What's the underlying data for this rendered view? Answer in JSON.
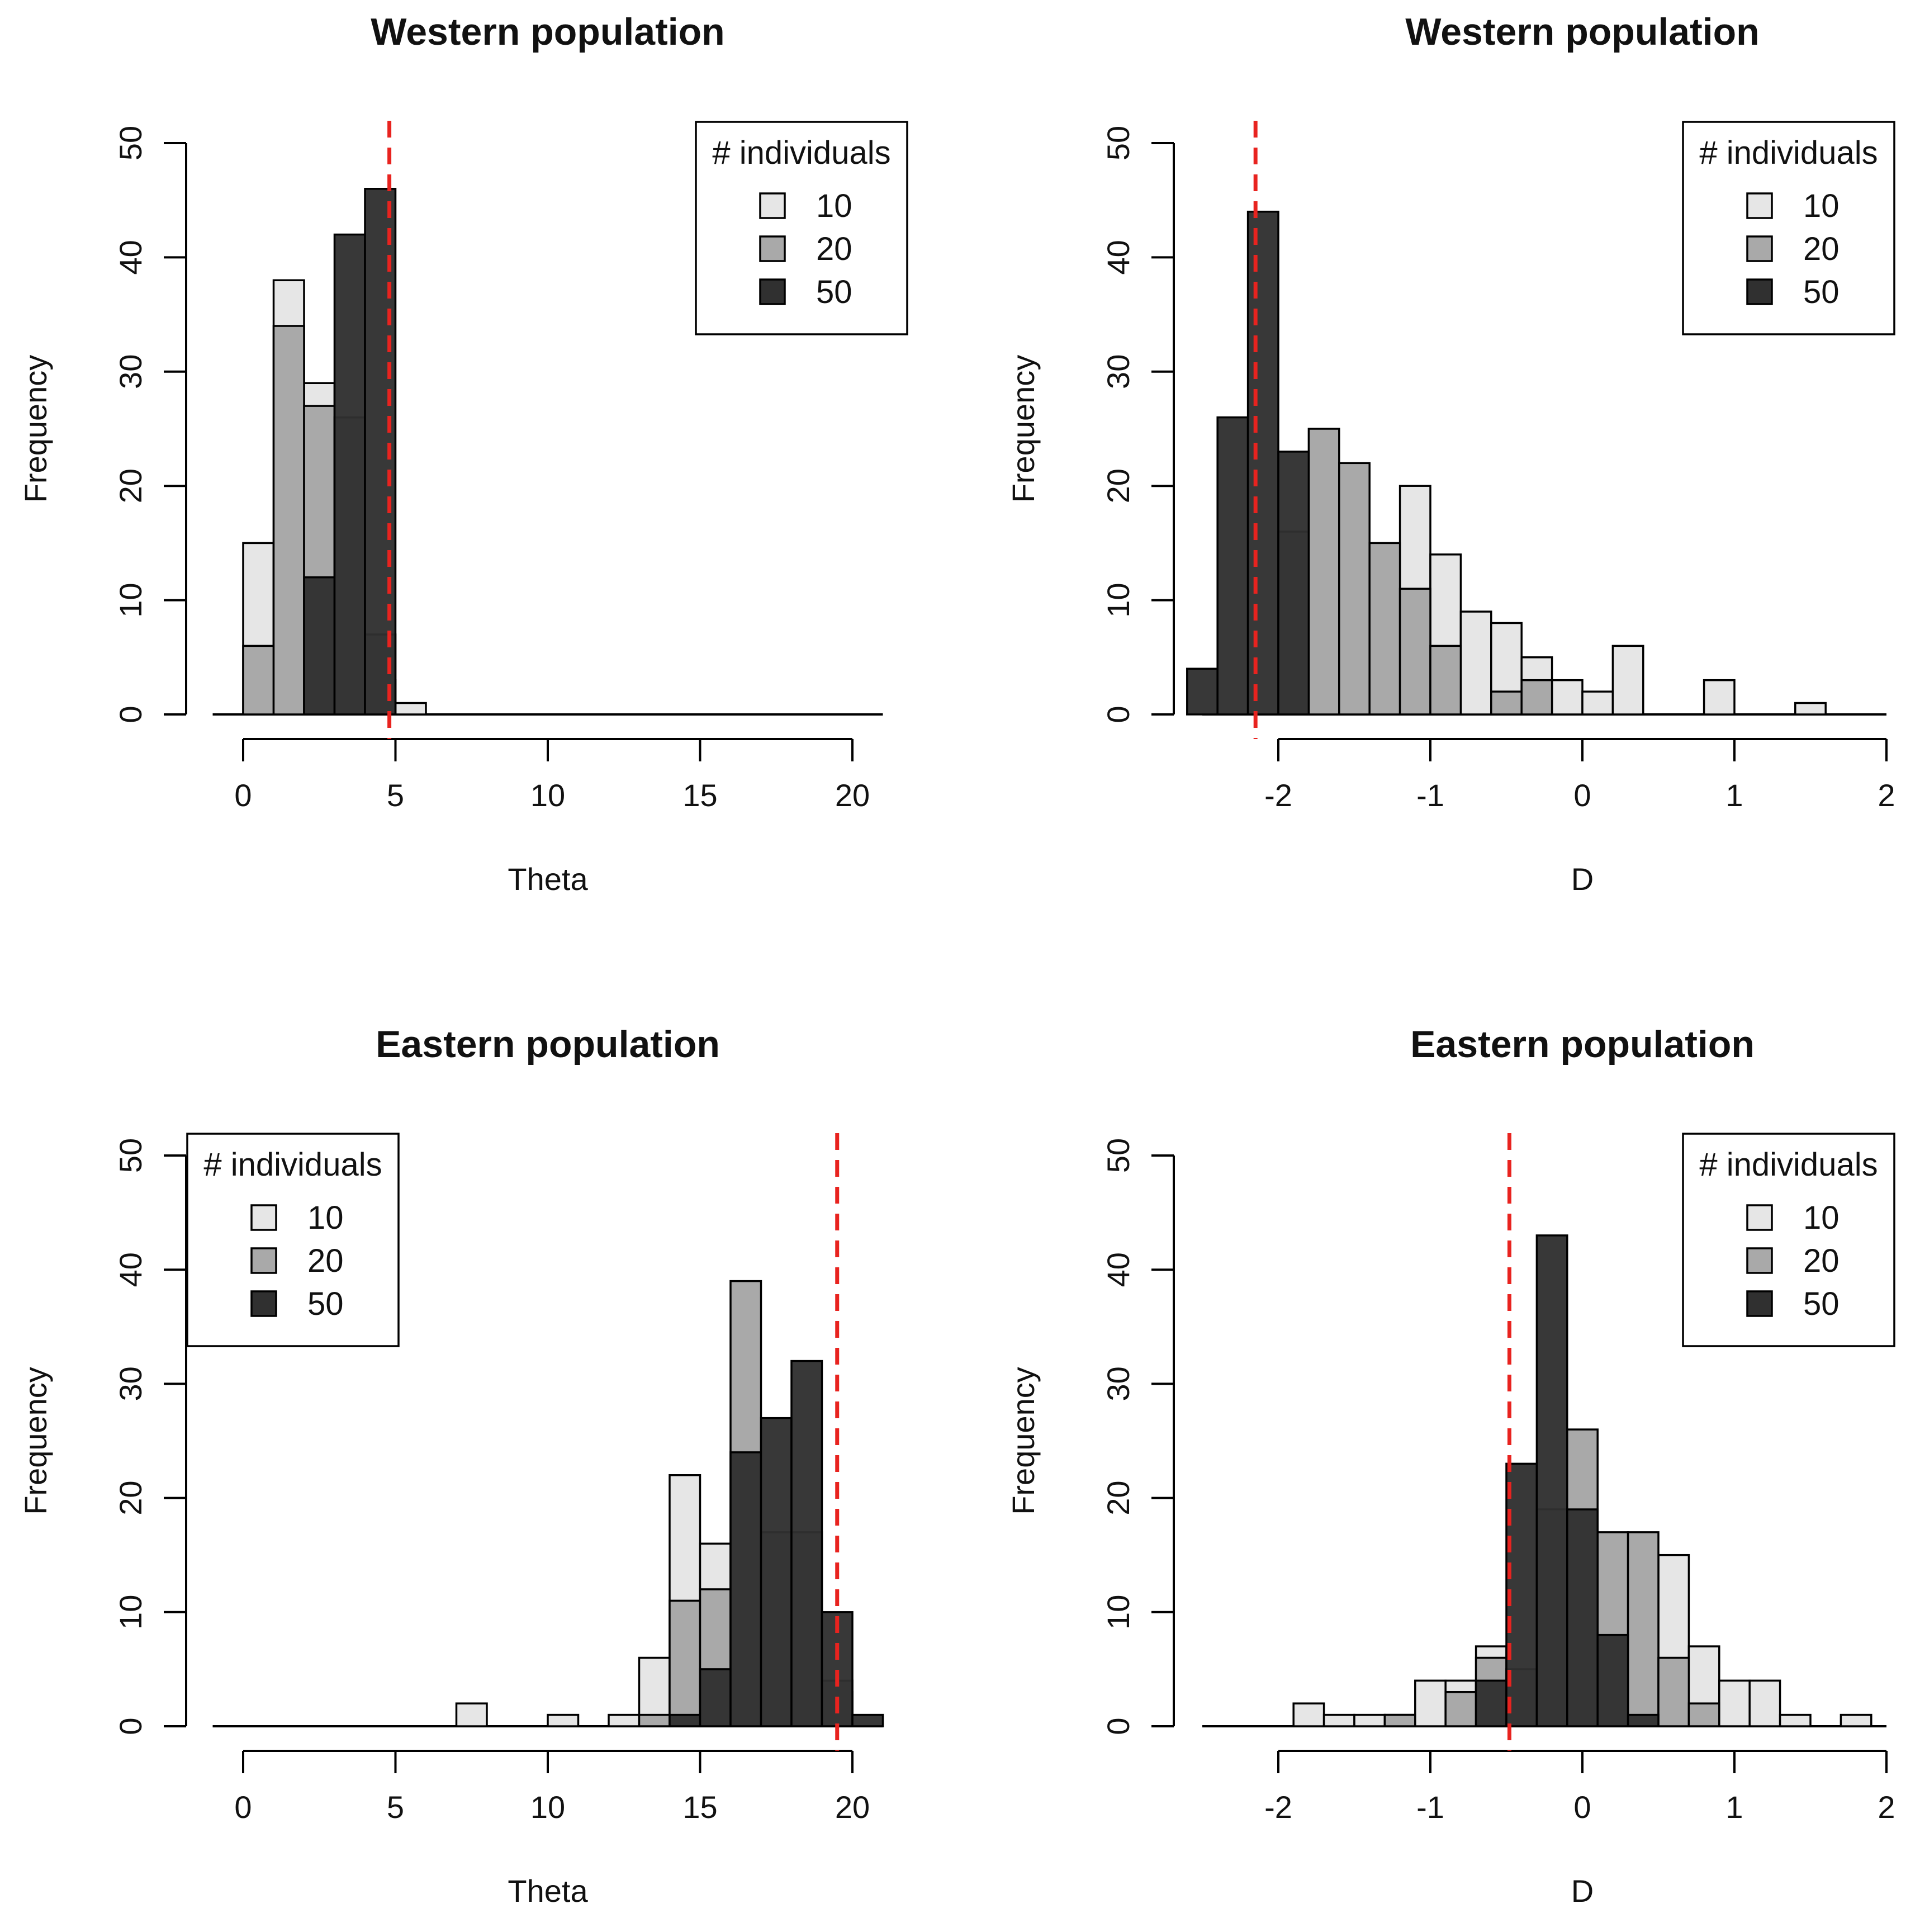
{
  "colors": {
    "n10": "#e6e6e6",
    "n20": "#a9a9a9",
    "n50": "#303030",
    "overlap": "#161616",
    "reference_line": "#e8231f",
    "outline": "#000000"
  },
  "chart_data": [
    {
      "type": "bar",
      "title": "Western population",
      "xlabel": "Theta",
      "ylabel": "Frequency",
      "xlim": [
        -1,
        21
      ],
      "ylim": [
        0,
        50
      ],
      "x_ticks": [
        0,
        5,
        10,
        15,
        20
      ],
      "x_tick_labels": [
        "0",
        "5",
        "10",
        "15",
        "20"
      ],
      "y_ticks": [
        0,
        10,
        20,
        30,
        40,
        50
      ],
      "y_tick_labels": [
        "0",
        "10",
        "20",
        "30",
        "40",
        "50"
      ],
      "bin_width": 1,
      "reference_line_x": 4.8,
      "legend": {
        "title": "# individuals",
        "position": "top-right",
        "entries": [
          "10",
          "20",
          "50"
        ]
      },
      "series": [
        {
          "name": "10",
          "bins": [
            [
              0,
              15
            ],
            [
              1,
              38
            ],
            [
              2,
              29
            ],
            [
              3,
              14
            ],
            [
              4,
              3
            ],
            [
              5,
              1
            ]
          ]
        },
        {
          "name": "20",
          "bins": [
            [
              0,
              6
            ],
            [
              1,
              34
            ],
            [
              2,
              27
            ],
            [
              3,
              26
            ],
            [
              4,
              7
            ]
          ]
        },
        {
          "name": "50",
          "bins": [
            [
              2,
              12
            ],
            [
              3,
              42
            ],
            [
              4,
              46
            ]
          ]
        }
      ]
    },
    {
      "type": "bar",
      "title": "Western population",
      "xlabel": "D",
      "ylabel": "Frequency",
      "xlim": [
        -2.5,
        2
      ],
      "ylim": [
        0,
        50
      ],
      "x_ticks": [
        -2,
        -1,
        0,
        1,
        2
      ],
      "x_tick_labels": [
        "-2",
        "-1",
        "0",
        "1",
        "2"
      ],
      "y_ticks": [
        0,
        10,
        20,
        30,
        40,
        50
      ],
      "y_tick_labels": [
        "0",
        "10",
        "20",
        "30",
        "40",
        "50"
      ],
      "bin_width": 0.2,
      "reference_line_x": -2.15,
      "legend": {
        "title": "# individuals",
        "position": "top-right",
        "entries": [
          "10",
          "20",
          "50"
        ]
      },
      "series": [
        {
          "name": "10",
          "bins": [
            [
              -2.0,
              1
            ],
            [
              -1.8,
              3
            ],
            [
              -1.6,
              3
            ],
            [
              -1.4,
              13
            ],
            [
              -1.2,
              20
            ],
            [
              -1.0,
              14
            ],
            [
              -0.8,
              9
            ],
            [
              -0.6,
              8
            ],
            [
              -0.4,
              5
            ],
            [
              -0.2,
              3
            ],
            [
              0.0,
              2
            ],
            [
              0.2,
              6
            ],
            [
              0.8,
              3
            ],
            [
              1.4,
              1
            ]
          ]
        },
        {
          "name": "20",
          "bins": [
            [
              -2.0,
              16
            ],
            [
              -1.8,
              25
            ],
            [
              -1.6,
              22
            ],
            [
              -1.4,
              15
            ],
            [
              -1.2,
              11
            ],
            [
              -1.0,
              6
            ],
            [
              -0.6,
              2
            ],
            [
              -0.4,
              3
            ]
          ]
        },
        {
          "name": "50",
          "bins": [
            [
              -2.6,
              4
            ],
            [
              -2.4,
              26
            ],
            [
              -2.2,
              44
            ],
            [
              -2.0,
              23
            ]
          ]
        }
      ]
    },
    {
      "type": "bar",
      "title": "Eastern population",
      "xlabel": "Theta",
      "ylabel": "Frequency",
      "xlim": [
        -1,
        21
      ],
      "ylim": [
        0,
        50
      ],
      "x_ticks": [
        0,
        5,
        10,
        15,
        20
      ],
      "x_tick_labels": [
        "0",
        "5",
        "10",
        "15",
        "20"
      ],
      "y_ticks": [
        0,
        10,
        20,
        30,
        40,
        50
      ],
      "y_tick_labels": [
        "0",
        "10",
        "20",
        "30",
        "40",
        "50"
      ],
      "bin_width": 1,
      "reference_line_x": 19.5,
      "legend": {
        "title": "# individuals",
        "position": "top-left",
        "entries": [
          "10",
          "20",
          "50"
        ]
      },
      "series": [
        {
          "name": "10",
          "bins": [
            [
              7,
              2
            ],
            [
              10,
              1
            ],
            [
              12,
              1
            ],
            [
              13,
              6
            ],
            [
              14,
              22
            ],
            [
              15,
              16
            ],
            [
              16,
              12
            ],
            [
              17,
              12
            ],
            [
              18,
              11
            ],
            [
              19,
              3
            ]
          ]
        },
        {
          "name": "20",
          "bins": [
            [
              13,
              1
            ],
            [
              14,
              11
            ],
            [
              15,
              12
            ],
            [
              16,
              39
            ],
            [
              17,
              17
            ],
            [
              18,
              17
            ],
            [
              19,
              4
            ]
          ]
        },
        {
          "name": "50",
          "bins": [
            [
              14,
              1
            ],
            [
              15,
              5
            ],
            [
              16,
              24
            ],
            [
              17,
              27
            ],
            [
              18,
              32
            ],
            [
              19,
              10
            ],
            [
              20,
              1
            ]
          ]
        }
      ]
    },
    {
      "type": "bar",
      "title": "Eastern population",
      "xlabel": "D",
      "ylabel": "Frequency",
      "xlim": [
        -2.5,
        2
      ],
      "ylim": [
        0,
        50
      ],
      "x_ticks": [
        -2,
        -1,
        0,
        1,
        2
      ],
      "x_tick_labels": [
        "-2",
        "-1",
        "0",
        "1",
        "2"
      ],
      "y_ticks": [
        0,
        10,
        20,
        30,
        40,
        50
      ],
      "y_tick_labels": [
        "0",
        "10",
        "20",
        "30",
        "40",
        "50"
      ],
      "bin_width": 0.2,
      "reference_line_x": -0.48,
      "legend": {
        "title": "# individuals",
        "position": "top-right",
        "entries": [
          "10",
          "20",
          "50"
        ]
      },
      "series": [
        {
          "name": "10",
          "bins": [
            [
              -1.9,
              2
            ],
            [
              -1.7,
              1
            ],
            [
              -1.5,
              1
            ],
            [
              -1.3,
              1
            ],
            [
              -1.1,
              4
            ],
            [
              -0.9,
              4
            ],
            [
              -0.7,
              7
            ],
            [
              -0.5,
              4
            ],
            [
              -0.3,
              7
            ],
            [
              -0.1,
              13
            ],
            [
              0.1,
              8
            ],
            [
              0.3,
              1
            ],
            [
              0.5,
              15
            ],
            [
              0.7,
              7
            ],
            [
              0.9,
              4
            ],
            [
              1.1,
              4
            ],
            [
              1.3,
              1
            ],
            [
              1.7,
              1
            ]
          ]
        },
        {
          "name": "20",
          "bins": [
            [
              -1.3,
              1
            ],
            [
              -0.9,
              3
            ],
            [
              -0.7,
              6
            ],
            [
              -0.5,
              5
            ],
            [
              -0.3,
              19
            ],
            [
              -0.1,
              26
            ],
            [
              0.1,
              17
            ],
            [
              0.3,
              17
            ],
            [
              0.5,
              6
            ],
            [
              0.7,
              2
            ]
          ]
        },
        {
          "name": "50",
          "bins": [
            [
              -0.7,
              4
            ],
            [
              -0.5,
              23
            ],
            [
              -0.3,
              43
            ],
            [
              -0.1,
              19
            ],
            [
              0.1,
              8
            ],
            [
              0.3,
              1
            ]
          ]
        }
      ]
    }
  ]
}
